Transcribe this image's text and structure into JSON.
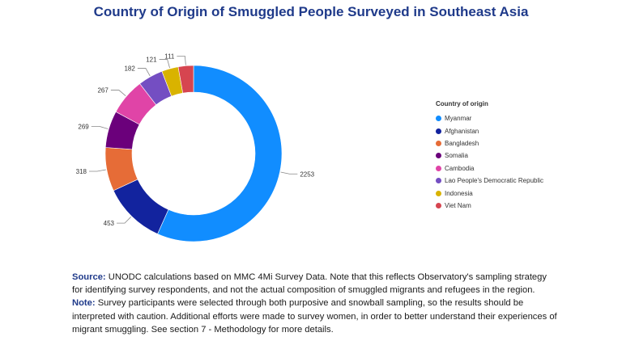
{
  "chart_data": {
    "type": "pie",
    "title": "Country of Origin of Smuggled People Surveyed in Southeast Asia",
    "legend_title": "Country of origin",
    "legend_position": "right",
    "categories": [
      "Myanmar",
      "Afghanistan",
      "Bangladesh",
      "Somalia",
      "Cambodia",
      "Lao People's Democratic Republic",
      "Indonesia",
      "Viet Nam"
    ],
    "values": [
      2253,
      453,
      318,
      269,
      267,
      182,
      121,
      111
    ],
    "colors": [
      "#118DFF",
      "#12239E",
      "#E66C37",
      "#6B007B",
      "#E044A7",
      "#744EC2",
      "#D9B300",
      "#D64550"
    ]
  },
  "notes": {
    "source_label": "Source:",
    "source_text": " UNODC calculations based on MMC 4Mi Survey Data. Note that this reflects Observatory's sampling strategy for identifying survey respondents, and not the actual composition of smuggled migrants and refugees in the region.",
    "note_label": "Note:",
    "note_text": " Survey participants were selected through both purposive and snowball sampling, so the results should be interpreted with caution. Additional efforts were made to survey women, in order to better understand their experiences of migrant smuggling. See section 7 - Methodology for more details."
  }
}
